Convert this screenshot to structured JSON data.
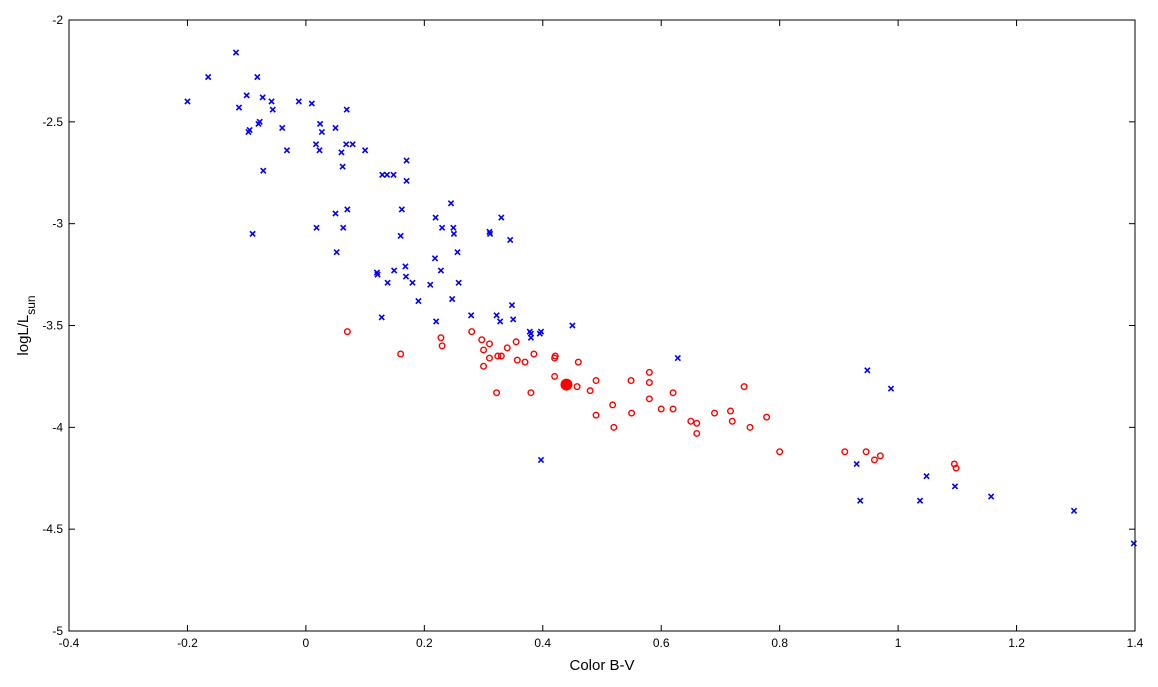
{
  "chart_data": {
    "type": "scatter",
    "xlabel": "Color B-V",
    "ylabel_main": "logL/L",
    "ylabel_sub": "sun",
    "xlim": [
      -0.4,
      1.4
    ],
    "ylim": [
      -5,
      -2
    ],
    "xticks": [
      -0.4,
      -0.2,
      0,
      0.2,
      0.4,
      0.6,
      0.8,
      1,
      1.2,
      1.4
    ],
    "xtick_labels": [
      "-0.4",
      "-0.2",
      "0",
      "0.2",
      "0.4",
      "0.6",
      "0.8",
      "1",
      "1.2",
      "1.4"
    ],
    "yticks": [
      -5,
      -4.5,
      -4,
      -3.5,
      -3,
      -2.5,
      -2
    ],
    "ytick_labels": [
      "-5",
      "-4.5",
      "-4",
      "-3.5",
      "-3",
      "-2.5",
      "-2"
    ],
    "grid": false,
    "colors": {
      "blue": "#0000ff",
      "red": "#ff0000",
      "axis": "#000000"
    },
    "series": [
      {
        "marker": "x",
        "color": "#0000ff",
        "points": [
          [
            -0.2,
            -2.4
          ],
          [
            -0.165,
            -2.28
          ],
          [
            -0.118,
            -2.16
          ],
          [
            -0.113,
            -2.43
          ],
          [
            -0.1,
            -2.37
          ],
          [
            -0.097,
            -2.55
          ],
          [
            -0.095,
            -2.54
          ],
          [
            -0.09,
            -3.05
          ],
          [
            -0.082,
            -2.28
          ],
          [
            -0.08,
            -2.51
          ],
          [
            -0.078,
            -2.5
          ],
          [
            -0.073,
            -2.38
          ],
          [
            -0.072,
            -2.74
          ],
          [
            -0.058,
            -2.4
          ],
          [
            -0.056,
            -2.44
          ],
          [
            -0.04,
            -2.53
          ],
          [
            -0.032,
            -2.64
          ],
          [
            -0.012,
            -2.4
          ],
          [
            0.01,
            -2.41
          ],
          [
            0.017,
            -2.61
          ],
          [
            0.018,
            -3.02
          ],
          [
            0.023,
            -2.64
          ],
          [
            0.024,
            -2.51
          ],
          [
            0.027,
            -2.55
          ],
          [
            0.05,
            -2.53
          ],
          [
            0.05,
            -2.95
          ],
          [
            0.052,
            -3.14
          ],
          [
            0.06,
            -2.65
          ],
          [
            0.062,
            -2.72
          ],
          [
            0.063,
            -3.02
          ],
          [
            0.068,
            -2.61
          ],
          [
            0.069,
            -2.44
          ],
          [
            0.07,
            -2.93
          ],
          [
            0.079,
            -2.61
          ],
          [
            0.1,
            -2.64
          ],
          [
            0.12,
            -3.24
          ],
          [
            0.121,
            -3.25
          ],
          [
            0.128,
            -3.46
          ],
          [
            0.129,
            -2.76
          ],
          [
            0.137,
            -2.76
          ],
          [
            0.138,
            -3.29
          ],
          [
            0.148,
            -2.76
          ],
          [
            0.149,
            -3.23
          ],
          [
            0.16,
            -3.06
          ],
          [
            0.162,
            -2.93
          ],
          [
            0.168,
            -3.21
          ],
          [
            0.169,
            -3.26
          ],
          [
            0.17,
            -2.69
          ],
          [
            0.17,
            -2.79
          ],
          [
            0.18,
            -3.29
          ],
          [
            0.19,
            -3.38
          ],
          [
            0.21,
            -3.3
          ],
          [
            0.218,
            -3.17
          ],
          [
            0.219,
            -2.97
          ],
          [
            0.22,
            -3.48
          ],
          [
            0.228,
            -3.23
          ],
          [
            0.23,
            -3.02
          ],
          [
            0.245,
            -2.9
          ],
          [
            0.247,
            -3.37
          ],
          [
            0.249,
            -3.02
          ],
          [
            0.25,
            -3.05
          ],
          [
            0.256,
            -3.14
          ],
          [
            0.258,
            -3.29
          ],
          [
            0.279,
            -3.45
          ],
          [
            0.31,
            -3.04
          ],
          [
            0.311,
            -3.05
          ],
          [
            0.322,
            -3.45
          ],
          [
            0.328,
            -3.48
          ],
          [
            0.33,
            -2.97
          ],
          [
            0.345,
            -3.08
          ],
          [
            0.348,
            -3.4
          ],
          [
            0.35,
            -3.47
          ],
          [
            0.378,
            -3.53
          ],
          [
            0.38,
            -3.56
          ],
          [
            0.38,
            -3.54
          ],
          [
            0.395,
            -3.54
          ],
          [
            0.397,
            -3.53
          ],
          [
            0.397,
            -4.16
          ],
          [
            0.45,
            -3.5
          ],
          [
            0.628,
            -3.66
          ],
          [
            0.93,
            -4.18
          ],
          [
            0.936,
            -4.36
          ],
          [
            0.948,
            -3.72
          ],
          [
            0.988,
            -3.81
          ],
          [
            1.037,
            -4.36
          ],
          [
            1.048,
            -4.24
          ],
          [
            1.096,
            -4.29
          ],
          [
            1.157,
            -4.34
          ],
          [
            1.297,
            -4.41
          ],
          [
            1.398,
            -4.57
          ]
        ]
      },
      {
        "marker": "o",
        "color": "#ff0000",
        "points": [
          [
            0.07,
            -3.53
          ],
          [
            0.16,
            -3.64
          ],
          [
            0.228,
            -3.56
          ],
          [
            0.23,
            -3.6
          ],
          [
            0.28,
            -3.53
          ],
          [
            0.297,
            -3.57
          ],
          [
            0.3,
            -3.62
          ],
          [
            0.3,
            -3.7
          ],
          [
            0.31,
            -3.66
          ],
          [
            0.31,
            -3.59
          ],
          [
            0.322,
            -3.83
          ],
          [
            0.324,
            -3.65
          ],
          [
            0.33,
            -3.65
          ],
          [
            0.34,
            -3.61
          ],
          [
            0.355,
            -3.58
          ],
          [
            0.357,
            -3.67
          ],
          [
            0.37,
            -3.68
          ],
          [
            0.38,
            -3.83
          ],
          [
            0.385,
            -3.64
          ],
          [
            0.42,
            -3.75
          ],
          [
            0.42,
            -3.66
          ],
          [
            0.421,
            -3.65
          ],
          [
            0.458,
            -3.8
          ],
          [
            0.46,
            -3.68
          ],
          [
            0.48,
            -3.82
          ],
          [
            0.49,
            -3.77
          ],
          [
            0.49,
            -3.94
          ],
          [
            0.518,
            -3.89
          ],
          [
            0.52,
            -4.0
          ],
          [
            0.549,
            -3.77
          ],
          [
            0.55,
            -3.93
          ],
          [
            0.58,
            -3.73
          ],
          [
            0.58,
            -3.78
          ],
          [
            0.58,
            -3.86
          ],
          [
            0.6,
            -3.91
          ],
          [
            0.62,
            -3.91
          ],
          [
            0.62,
            -3.83
          ],
          [
            0.65,
            -3.97
          ],
          [
            0.66,
            -3.98
          ],
          [
            0.66,
            -4.03
          ],
          [
            0.69,
            -3.93
          ],
          [
            0.717,
            -3.92
          ],
          [
            0.72,
            -3.97
          ],
          [
            0.74,
            -3.8
          ],
          [
            0.75,
            -4.0
          ],
          [
            0.778,
            -3.95
          ],
          [
            0.8,
            -4.12
          ],
          [
            0.91,
            -4.12
          ],
          [
            0.946,
            -4.12
          ],
          [
            0.96,
            -4.16
          ],
          [
            0.97,
            -4.14
          ],
          [
            1.095,
            -4.18
          ],
          [
            1.098,
            -4.2
          ]
        ]
      },
      {
        "marker": "filled-circle",
        "color": "#ff0000",
        "points": [
          [
            0.44,
            -3.79
          ]
        ]
      }
    ]
  }
}
